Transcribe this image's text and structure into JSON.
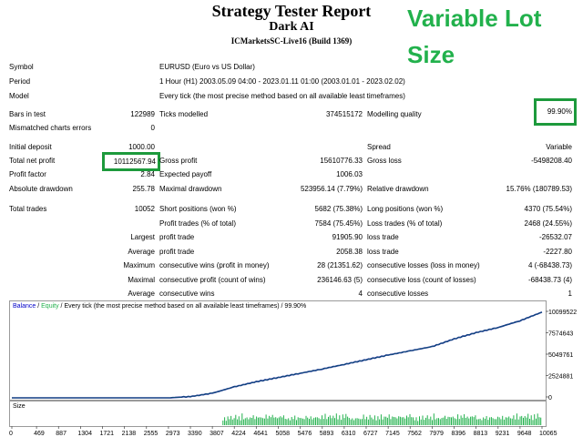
{
  "header": {
    "title": "Strategy Tester Report",
    "expert": "Dark AI",
    "server": "ICMarketsSC-Live16 (Build 1369)",
    "promo": [
      "Variable Lot",
      "Size"
    ]
  },
  "info": {
    "symbol_label": "Symbol",
    "symbol_value": "EURUSD (Euro vs US Dollar)",
    "period_label": "Period",
    "period_value": "1 Hour (H1) 2003.05.09 04:00 - 2023.01.11 01:00 (2003.01.01 - 2023.02.02)",
    "model_label": "Model",
    "model_value": "Every tick (the most precise method based on all available least timeframes)",
    "bars_label": "Bars in test",
    "bars_value": "122989",
    "ticks_label": "Ticks modelled",
    "ticks_value": "374515172",
    "quality_label": "Modelling quality",
    "quality_value": "99.90%",
    "mismatch_label": "Mismatched charts errors",
    "mismatch_value": "0"
  },
  "results": {
    "deposit_label": "Initial deposit",
    "deposit_value": "1000.00",
    "spread_label": "Spread",
    "spread_value": "Variable",
    "netprofit_label": "Total net profit",
    "netprofit_value": "10112567.94",
    "grossprofit_label": "Gross profit",
    "grossprofit_value": "15610776.33",
    "grossloss_label": "Gross loss",
    "grossloss_value": "-5498208.40",
    "pf_label": "Profit factor",
    "pf_value": "2.84",
    "ep_label": "Expected payoff",
    "ep_value": "1006.03",
    "absdd_label": "Absolute drawdown",
    "absdd_value": "255.78",
    "maxdd_label": "Maximal drawdown",
    "maxdd_value": "523956.14 (7.79%)",
    "reldd_label": "Relative drawdown",
    "reldd_value": "15.76% (180789.53)",
    "trades_label": "Total trades",
    "trades_value": "10052",
    "short_label": "Short positions (won %)",
    "short_value": "5682 (75.38%)",
    "long_label": "Long positions (won %)",
    "long_value": "4370 (75.54%)",
    "ptrades_label": "Profit trades (% of total)",
    "ptrades_value": "7584 (75.45%)",
    "ltrades_label": "Loss trades (% of total)",
    "ltrades_value": "2468 (24.55%)",
    "largest_label": "Largest",
    "largest_profit_label": "profit trade",
    "largest_profit_value": "91905.90",
    "largest_loss_label": "loss trade",
    "largest_loss_value": "-26532.07",
    "average_label": "Average",
    "average_profit_label": "profit trade",
    "average_profit_value": "2058.38",
    "average_loss_label": "loss trade",
    "average_loss_value": "-2227.80",
    "maximum_label": "Maximum",
    "maxcw_label": "consecutive wins (profit in money)",
    "maxcw_value": "28 (21351.62)",
    "maxcl_label": "consecutive losses (loss in money)",
    "maxcl_value": "4 (-68438.73)",
    "maximal_label": "Maximal",
    "maximalcp_label": "consecutive profit (count of wins)",
    "maximalcp_value": "236146.63 (5)",
    "maximalcl_label": "consecutive loss (count of losses)",
    "maximalcl_value": "-68438.73 (4)",
    "avg2_label": "Average",
    "avgcw_label": "consecutive wins",
    "avgcw_value": "4",
    "avgcl_label": "consecutive losses",
    "avgcl_value": "1"
  },
  "chart": {
    "legend_balance": "Balance",
    "legend_sep": " / ",
    "legend_equity": "Equity",
    "legend_rest": " / Every tick (the most precise method based on all available least timeframes) / 99.90%",
    "size_label": "Size",
    "colors": {
      "balance": "#0a1f8f",
      "equity": "#22b14c",
      "size": "#22b14c",
      "highlight": "#1d9a3c"
    }
  },
  "chart_data": {
    "type": "line",
    "title": "",
    "x": [
      0,
      469,
      887,
      1304,
      1721,
      2138,
      2555,
      2973,
      3390,
      3807,
      4224,
      4641,
      5058,
      5476,
      5893,
      6310,
      6727,
      7145,
      7562,
      7979,
      8396,
      8813,
      9231,
      9648,
      10065
    ],
    "xticks": [
      "0",
      "469",
      "887",
      "1304",
      "1721",
      "2138",
      "2555",
      "2973",
      "3390",
      "3807",
      "4224",
      "4641",
      "5058",
      "5476",
      "5893",
      "6310",
      "6727",
      "7145",
      "7562",
      "7979",
      "8396",
      "8813",
      "9231",
      "9648",
      "10065"
    ],
    "yticks": [
      "10099522",
      "7574643",
      "5049761",
      "2524881",
      "0"
    ],
    "ylim": [
      0,
      10099522
    ],
    "series": [
      {
        "name": "Balance",
        "values": [
          1000,
          1000,
          1000,
          1000,
          1000,
          1000,
          1000,
          1000,
          150000,
          550000,
          1300000,
          1900000,
          2400000,
          2900000,
          3400000,
          3950000,
          4500000,
          5050000,
          5550000,
          6050000,
          6950000,
          7700000,
          8300000,
          9100000,
          10112567
        ]
      },
      {
        "name": "Equity",
        "values": [
          1000,
          1000,
          1000,
          1000,
          1000,
          1000,
          1000,
          1000,
          150000,
          550000,
          1300000,
          1900000,
          2400000,
          2900000,
          3400000,
          3950000,
          4500000,
          5050000,
          5550000,
          6050000,
          6950000,
          7700000,
          8300000,
          9100000,
          10112567
        ]
      }
    ],
    "size_series": {
      "name": "Size",
      "start_x": 4000,
      "relative_heights": [
        0.3,
        0.5,
        0.2,
        0.6,
        0.4,
        0.7,
        0.3,
        0.5,
        0.8,
        0.4,
        0.6,
        0.3,
        0.9,
        0.5,
        0.4,
        0.7,
        0.3,
        0.6,
        0.5,
        0.8,
        0.4,
        0.6,
        0.7,
        0.5,
        0.9,
        0.4,
        0.6,
        0.8,
        0.5,
        0.7,
        0.6,
        0.9,
        0.5,
        0.7,
        0.4,
        0.8,
        0.6,
        0.9,
        0.7,
        0.5
      ]
    }
  }
}
